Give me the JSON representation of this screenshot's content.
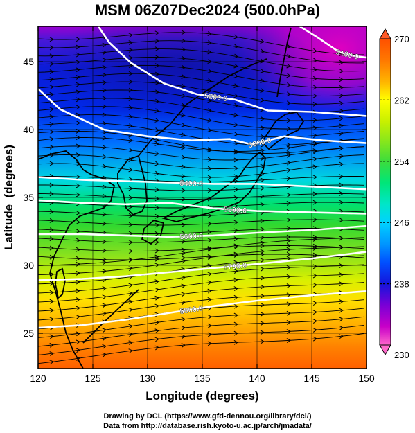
{
  "title": "MSM 06Z07Dec2024 (500.0hPa)",
  "credits": {
    "line1": "Drawing by DCL (https://www.gfd-dennou.org/library/dcl/)",
    "line2": "Data from http://database.rish.kyoto-u.ac.jp/arch/jmadata/"
  },
  "map": {
    "type": "heatmap",
    "xlabel": "Longitude (degrees)",
    "ylabel": "Latitude  (degrees)",
    "xlim": [
      120,
      150
    ],
    "ylim": [
      22.4,
      47.6
    ],
    "xticks": [
      "120",
      "125",
      "130",
      "135",
      "140",
      "145",
      "150"
    ],
    "yticks": [
      "25",
      "30",
      "35",
      "40",
      "45"
    ],
    "colorbar": {
      "min": 230,
      "max": 270,
      "labels": [
        "230",
        "238",
        "246",
        "254",
        "262",
        "270"
      ],
      "colors": [
        "#ff66cc",
        "#c800c8",
        "#7a00d6",
        "#1414dc",
        "#0050ff",
        "#0096ff",
        "#00d2ff",
        "#00e6c8",
        "#00e678",
        "#3cdc3c",
        "#82e61e",
        "#c8f000",
        "#ffff00",
        "#ffb400",
        "#ff7800",
        "#ff5000"
      ]
    },
    "contours": [
      {
        "label": "5100.0",
        "points": [
          [
            143.9,
            47.6
          ],
          [
            145.5,
            46.8
          ],
          [
            147.5,
            45.7
          ],
          [
            149.0,
            45.4
          ],
          [
            150.0,
            45.3
          ]
        ]
      },
      {
        "label": "5200.0",
        "points": [
          [
            125.5,
            47.6
          ],
          [
            126.5,
            46.4
          ],
          [
            128.5,
            44.9
          ],
          [
            131.5,
            43.4
          ],
          [
            134.5,
            42.6
          ],
          [
            138.0,
            42.2
          ],
          [
            141.0,
            41.4
          ],
          [
            145.0,
            41.3
          ],
          [
            150.0,
            41.0
          ]
        ]
      },
      {
        "label": "5300.0",
        "points": [
          [
            120.0,
            43.0
          ],
          [
            122.0,
            41.5
          ],
          [
            126.0,
            40.0
          ],
          [
            130.0,
            39.5
          ],
          [
            134.0,
            39.2
          ],
          [
            137.5,
            39.3
          ],
          [
            139.5,
            38.9
          ],
          [
            141.0,
            39.2
          ],
          [
            142.5,
            39.5
          ],
          [
            146.0,
            39.2
          ],
          [
            150.0,
            39.0
          ]
        ]
      },
      {
        "label": "5400.0",
        "points": [
          [
            120.0,
            36.5
          ],
          [
            124.0,
            36.3
          ],
          [
            128.0,
            36.2
          ],
          [
            132.0,
            36.1
          ],
          [
            136.0,
            36.0
          ],
          [
            140.0,
            36.0
          ],
          [
            145.0,
            35.8
          ],
          [
            150.0,
            35.6
          ]
        ]
      },
      {
        "label": "5500.0",
        "points": [
          [
            120.0,
            34.8
          ],
          [
            124.0,
            34.6
          ],
          [
            128.0,
            34.5
          ],
          [
            132.0,
            34.6
          ],
          [
            136.0,
            34.2
          ],
          [
            140.0,
            34.0
          ],
          [
            145.0,
            33.9
          ],
          [
            150.0,
            33.8
          ]
        ]
      },
      {
        "label": "5600.0",
        "points": [
          [
            120.0,
            32.3
          ],
          [
            124.0,
            32.3
          ],
          [
            128.0,
            32.2
          ],
          [
            132.0,
            32.1
          ],
          [
            136.0,
            32.2
          ],
          [
            140.0,
            32.4
          ],
          [
            145.0,
            32.6
          ],
          [
            150.0,
            32.9
          ]
        ]
      },
      {
        "label": "5700.0",
        "points": [
          [
            120.0,
            28.9
          ],
          [
            124.0,
            29.0
          ],
          [
            128.0,
            29.2
          ],
          [
            132.0,
            29.5
          ],
          [
            136.0,
            29.8
          ],
          [
            140.0,
            30.1
          ],
          [
            145.0,
            30.5
          ],
          [
            150.0,
            31.0
          ]
        ]
      },
      {
        "label": "5800.0",
        "points": [
          [
            120.0,
            25.4
          ],
          [
            124.0,
            25.6
          ],
          [
            128.0,
            26.0
          ],
          [
            132.0,
            26.5
          ],
          [
            136.0,
            27.0
          ],
          [
            140.0,
            27.4
          ],
          [
            145.0,
            27.8
          ],
          [
            150.0,
            28.1
          ]
        ]
      }
    ]
  }
}
